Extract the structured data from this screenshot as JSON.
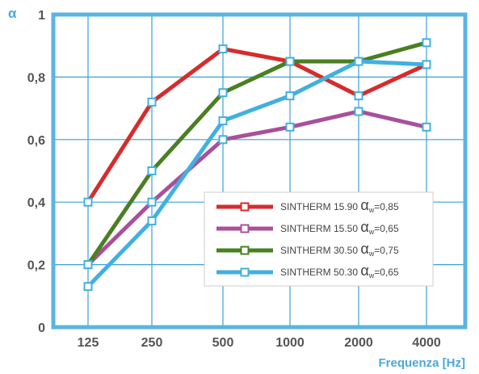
{
  "chart_data": {
    "type": "line",
    "title": "",
    "ylabel": "α",
    "xlabel": "Frequenza [Hz]",
    "categories": [
      "125",
      "250",
      "500",
      "1000",
      "2000",
      "4000"
    ],
    "ylim": [
      0,
      1
    ],
    "yticks": [
      0,
      0.2,
      0.4,
      0.6,
      0.8,
      1
    ],
    "ytick_labels": [
      "0",
      "0,2",
      "0,4",
      "0,6",
      "0,8",
      "1"
    ],
    "grid": true,
    "legend_position": "lower-right",
    "series": [
      {
        "name": "SINTHERM  15.90",
        "alpha_symbol": "α",
        "subscript": "w",
        "alpha_value": "=0,85",
        "color": "#d62c2c",
        "values": [
          0.4,
          0.72,
          0.89,
          0.85,
          0.74,
          0.84
        ]
      },
      {
        "name": "SINTHERM  15.50",
        "alpha_symbol": "α",
        "subscript": "w",
        "alpha_value": "=0,65",
        "color": "#a8509a",
        "values": [
          0.2,
          0.4,
          0.6,
          0.64,
          0.69,
          0.64
        ]
      },
      {
        "name": "SINTHERM  30.50",
        "alpha_symbol": "α",
        "subscript": "w",
        "alpha_value": "=0,75",
        "color": "#4a7f22",
        "values": [
          0.2,
          0.5,
          0.75,
          0.85,
          0.85,
          0.91
        ]
      },
      {
        "name": "SINTHERM  50.30",
        "alpha_symbol": "α",
        "subscript": "w",
        "alpha_value": "=0,65",
        "color": "#41b0e0",
        "values": [
          0.13,
          0.34,
          0.66,
          0.74,
          0.85,
          0.84
        ]
      }
    ],
    "colors": {
      "frame": "#5bb4e2",
      "grid": "#3aa0d8",
      "marker_fill": "#ffffff",
      "marker_stroke": "#41b0e0"
    }
  }
}
